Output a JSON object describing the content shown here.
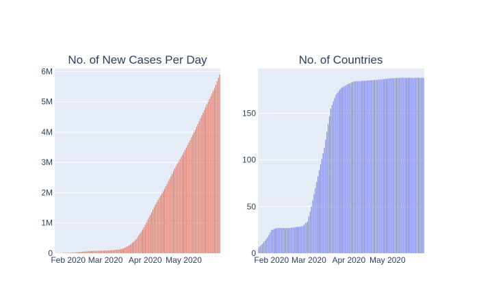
{
  "chart_data": [
    {
      "type": "bar",
      "title": "No. of New Cases Per Day",
      "xlabel": "",
      "ylabel": "",
      "bar_color": "#EF553B",
      "bg_color": "#E5ECF6",
      "grid": true,
      "xlim": [
        "2020-01-22",
        "2020-05-29"
      ],
      "ylim": [
        0,
        6100000
      ],
      "x_ticks": [
        {
          "date": "2020-02-01",
          "label": "Feb 2020"
        },
        {
          "date": "2020-03-01",
          "label": "Mar 2020"
        },
        {
          "date": "2020-04-01",
          "label": "Apr 2020"
        },
        {
          "date": "2020-05-01",
          "label": "May 2020"
        }
      ],
      "y_ticks": [
        {
          "value": 0,
          "label": "0"
        },
        {
          "value": 1000000,
          "label": "1M"
        },
        {
          "value": 2000000,
          "label": "2M"
        },
        {
          "value": 3000000,
          "label": "3M"
        },
        {
          "value": 4000000,
          "label": "4M"
        },
        {
          "value": 5000000,
          "label": "5M"
        },
        {
          "value": 6000000,
          "label": "6M"
        }
      ],
      "series": [
        {
          "points": [
            [
              "2020-01-22",
              0
            ],
            [
              "2020-02-01",
              12000
            ],
            [
              "2020-02-10",
              40000
            ],
            [
              "2020-02-20",
              76000
            ],
            [
              "2020-03-01",
              88000
            ],
            [
              "2020-03-10",
              114000
            ],
            [
              "2020-03-15",
              160000
            ],
            [
              "2020-03-20",
              270000
            ],
            [
              "2020-03-25",
              460000
            ],
            [
              "2020-03-31",
              850000
            ],
            [
              "2020-04-05",
              1270000
            ],
            [
              "2020-04-10",
              1690000
            ],
            [
              "2020-04-15",
              2050000
            ],
            [
              "2020-04-20",
              2450000
            ],
            [
              "2020-04-25",
              2880000
            ],
            [
              "2020-04-30",
              3250000
            ],
            [
              "2020-05-05",
              3650000
            ],
            [
              "2020-05-10",
              4080000
            ],
            [
              "2020-05-15",
              4550000
            ],
            [
              "2020-05-20",
              5000000
            ],
            [
              "2020-05-25",
              5450000
            ],
            [
              "2020-05-29",
              5900000
            ]
          ]
        }
      ]
    },
    {
      "type": "bar",
      "title": "No. of Countries",
      "xlabel": "",
      "ylabel": "",
      "bar_color": "#636EFA",
      "bg_color": "#E5ECF6",
      "grid": true,
      "xlim": [
        "2020-01-22",
        "2020-05-29"
      ],
      "ylim": [
        0,
        198
      ],
      "x_ticks": [
        {
          "date": "2020-02-01",
          "label": "Feb 2020"
        },
        {
          "date": "2020-03-01",
          "label": "Mar 2020"
        },
        {
          "date": "2020-04-01",
          "label": "Apr 2020"
        },
        {
          "date": "2020-05-01",
          "label": "May 2020"
        }
      ],
      "y_ticks": [
        {
          "value": 0,
          "label": "0"
        },
        {
          "value": 50,
          "label": "50"
        },
        {
          "value": 100,
          "label": "100"
        },
        {
          "value": 150,
          "label": "150"
        }
      ],
      "series": [
        {
          "points": [
            [
              "2020-01-22",
              6
            ],
            [
              "2020-01-25",
              10
            ],
            [
              "2020-01-29",
              17
            ],
            [
              "2020-02-01",
              25
            ],
            [
              "2020-02-05",
              27
            ],
            [
              "2020-02-15",
              27
            ],
            [
              "2020-02-25",
              29
            ],
            [
              "2020-02-29",
              34
            ],
            [
              "2020-03-03",
              50
            ],
            [
              "2020-03-06",
              70
            ],
            [
              "2020-03-10",
              95
            ],
            [
              "2020-03-13",
              113
            ],
            [
              "2020-03-15",
              130
            ],
            [
              "2020-03-18",
              155
            ],
            [
              "2020-03-22",
              170
            ],
            [
              "2020-03-26",
              177
            ],
            [
              "2020-03-31",
              181
            ],
            [
              "2020-04-05",
              184
            ],
            [
              "2020-04-15",
              185
            ],
            [
              "2020-04-25",
              186
            ],
            [
              "2020-04-30",
              187
            ],
            [
              "2020-05-10",
              188
            ],
            [
              "2020-05-29",
              188
            ]
          ]
        }
      ]
    }
  ]
}
